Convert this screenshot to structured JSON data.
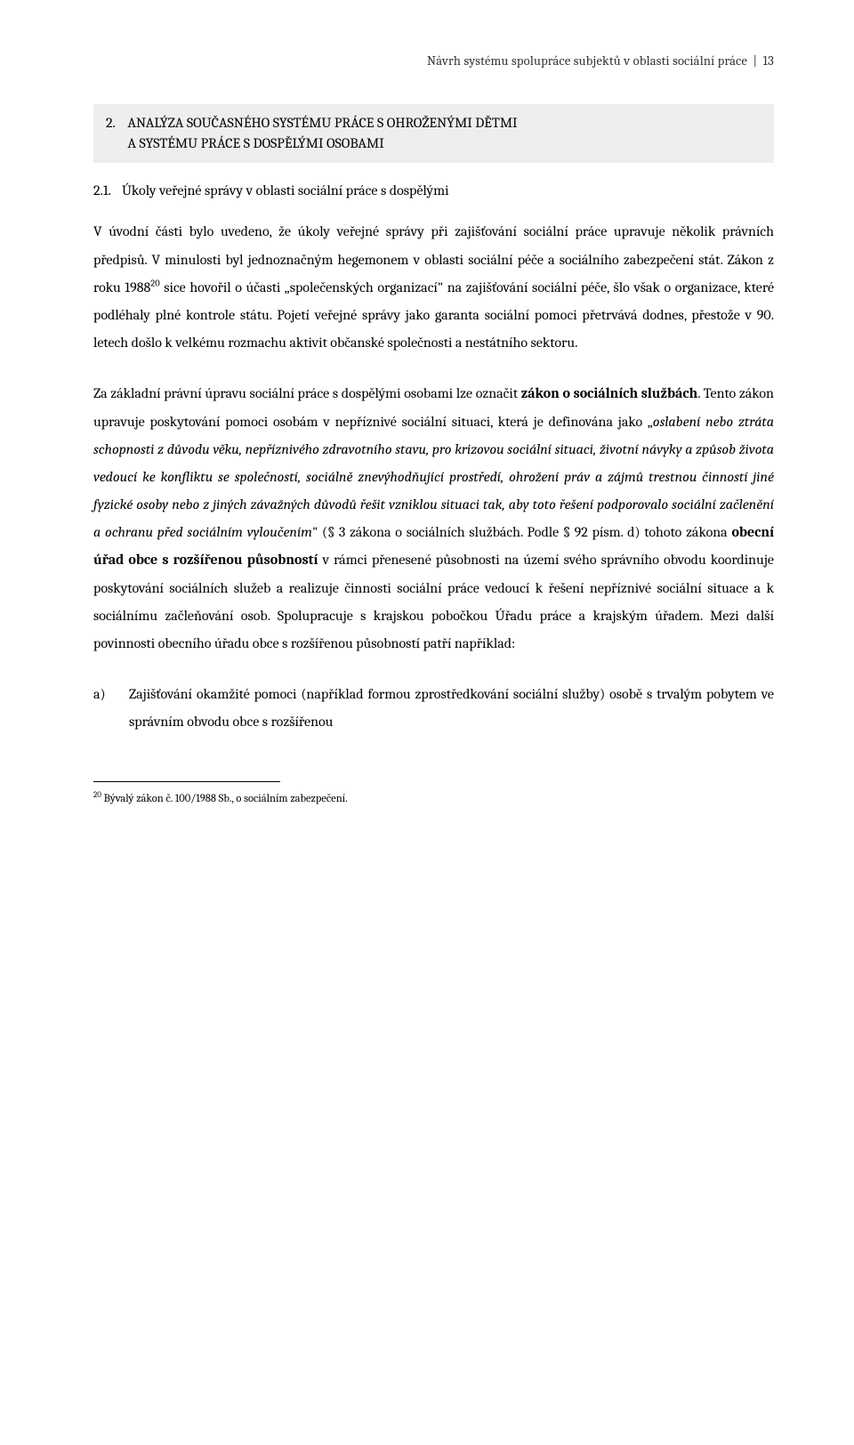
{
  "header": {
    "doc_title": "Návrh systému spolupráce subjektů v oblasti sociální práce",
    "separator": "|",
    "page_number": "13"
  },
  "section": {
    "number": "2.",
    "title_line1": "ANALÝZA SOUČASNÉHO SYSTÉMU PRÁCE S OHROŽENÝMI DĚTMI",
    "title_line2": "A SYSTÉMU PRÁCE S DOSPĚLÝMI OSOBAMI"
  },
  "subsection": {
    "number": "2.1.",
    "title": "Úkoly veřejné správy v oblasti sociální práce s dospělými"
  },
  "para1": {
    "t1": "V úvodní části bylo uvedeno, že úkoly veřejné správy při zajišťování sociální práce upravuje několik právních předpisů. V minulosti byl jednoznačným hegemonem v oblasti sociální péče a sociálního zabezpečení stát. Zákon z roku 1988",
    "sup1": "20",
    "t2": " sice hovořil o účasti „společenských organizací\" na zajišťování sociální péče, šlo však o organizace, které podléhaly plné kontrole státu. Pojetí veřejné správy jako garanta sociální pomoci přetrvává dodnes, přestože v 90. letech došlo k velkému rozmachu aktivit občanské společnosti a nestátního sektoru."
  },
  "para2": {
    "t1": "Za základní právní úpravu sociální práce s dospělými osobami lze označit ",
    "b1": "zákon o sociálních službách",
    "t2": ". Tento zákon upravuje poskytování pomoci osobám v nepříznivé sociální situaci, která je definována jako „",
    "i1": "oslabení nebo ztráta schopnosti z důvodu věku, nepříznivého zdravotního stavu, pro krizovou sociální situaci, životní návyky a způsob života vedoucí ke konfliktu se společností, sociálně znevýhodňující prostředí, ohrožení práv a zájmů trestnou činností jiné fyzické osoby nebo z jiných závažných důvodů řešit vzniklou situaci tak, aby toto řešení podporovalo sociální začlenění a ochranu před sociálním vyloučením",
    "t3": "\" (§ 3 zákona o sociálních službách. Podle § 92 písm. d) tohoto zákona ",
    "b2": "obecní úřad obce s rozšířenou působností",
    "t4": " v rámci přenesené působnosti na území svého správního obvodu koordinuje poskytování sociálních služeb a realizuje činnosti sociální práce vedoucí k řešení nepříznivé sociální situace a k sociálnímu začleňování osob. Spolupracuje s krajskou pobočkou Úřadu práce a krajským úřadem. Mezi další povinnosti obecního úřadu obce s rozšířenou působností patří například:"
  },
  "list_a": {
    "marker": "a)",
    "text": "Zajišťování okamžité pomoci (například formou zprostředkování sociální služby) osobě s trvalým pobytem ve správním obvodu obce s rozšířenou"
  },
  "footnote": {
    "sup": "20",
    "text": "  Bývalý zákon č. 100/1988 Sb., o sociálním zabezpečení."
  }
}
